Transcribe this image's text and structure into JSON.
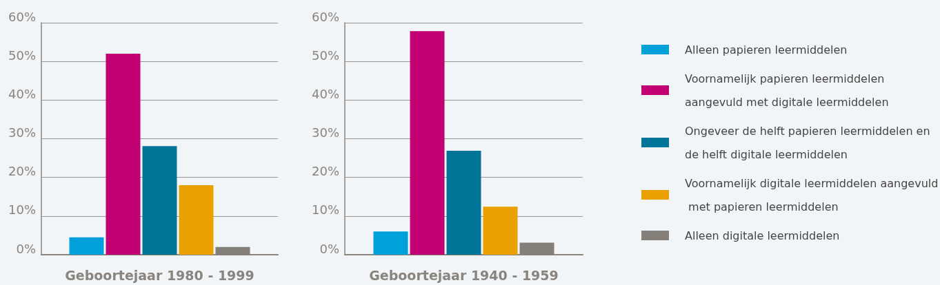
{
  "chart_data": [
    {
      "type": "bar",
      "categories": [
        null
      ],
      "xlabel": "Geboortejaar 1980 - 1999",
      "series": [
        {
          "color": "#00a0da",
          "values": [
            4.5
          ]
        },
        {
          "color": "#c00073",
          "values": [
            52.0
          ]
        },
        {
          "color": "#007598",
          "values": [
            28.1
          ]
        },
        {
          "color": "#e9a000",
          "values": [
            18.0
          ]
        },
        {
          "color": "#857f79",
          "values": [
            2.0
          ]
        }
      ],
      "ylim": [
        0,
        60
      ],
      "yticks": [
        {
          "value": 0,
          "label": "0%"
        },
        {
          "value": 10,
          "label": "10%"
        },
        {
          "value": 20,
          "label": "20%"
        },
        {
          "value": 30,
          "label": "30%"
        },
        {
          "value": 40,
          "label": "40%"
        },
        {
          "value": 50,
          "label": "50%"
        },
        {
          "value": 60,
          "label": "60%"
        }
      ],
      "grid": "y",
      "legend": false
    },
    {
      "type": "bar",
      "categories": [
        null
      ],
      "xlabel": "Geboortejaar 1940 - 1959",
      "series": [
        {
          "name": "Alleen papieren leermiddelen",
          "color": "#00a0da",
          "values": [
            6.0
          ]
        },
        {
          "name": "Voornamelijk papieren leermiddelen aangevuld met digitale leermiddelen",
          "color": "#c00073",
          "values": [
            57.8
          ]
        },
        {
          "name": "Ongeveer de helft papieren leermiddelen en de helft digitale leermiddelen",
          "color": "#007598",
          "values": [
            26.9
          ]
        },
        {
          "name": "Voornamelijk digitale leermiddelen aangevuld met papieren leermiddelen",
          "color": "#e9a000",
          "values": [
            12.4
          ]
        },
        {
          "name": "Alleen digitale leermiddelen",
          "color": "#857f79",
          "values": [
            3.1
          ]
        }
      ],
      "ylim": [
        0,
        60
      ],
      "yticks": [
        {
          "value": 0,
          "label": "0%"
        },
        {
          "value": 10,
          "label": "10%"
        },
        {
          "value": 20,
          "label": "20%"
        },
        {
          "value": 30,
          "label": "30%"
        },
        {
          "value": 40,
          "label": "40%"
        },
        {
          "value": 50,
          "label": "50%"
        },
        {
          "value": 60,
          "label": "60%"
        }
      ],
      "grid": "y",
      "legend": "right"
    }
  ]
}
